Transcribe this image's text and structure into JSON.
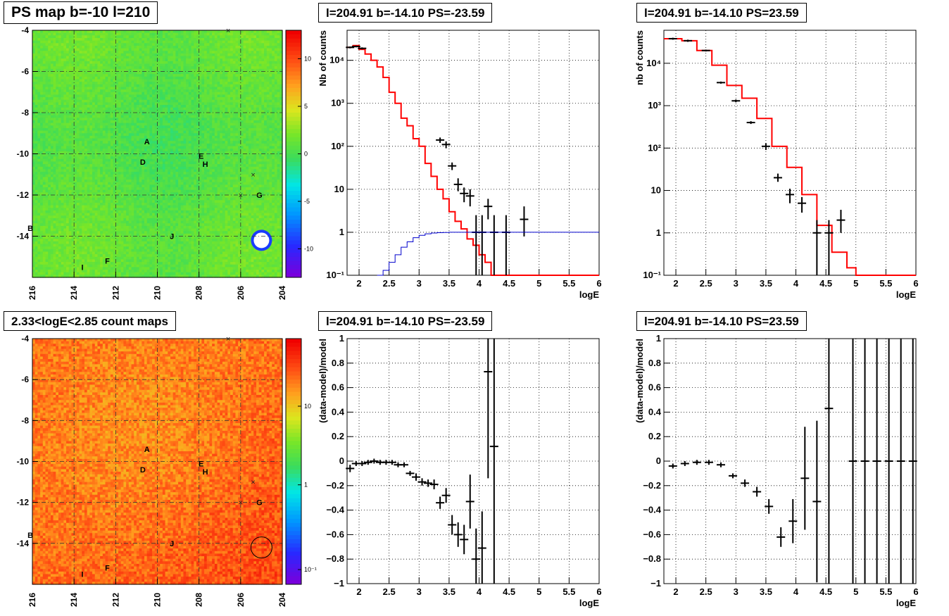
{
  "pad_titles": {
    "map_ps": "PS map b=-10 l=210",
    "map_counts": "2.33<logE<2.85 count maps",
    "spec_left": "l=204.91 b=-14.10 PS=-23.59",
    "spec_right": "l=204.91 b=-14.10 PS=23.59",
    "res_left": "l=204.91 b=-14.10 PS=-23.59",
    "res_right": "l=204.91 b=-14.10 PS=23.59"
  },
  "chart_data": [
    {
      "id": "ps_map",
      "type": "heatmap",
      "title": "PS map b=-10 l=210",
      "xlim": [
        216,
        204
      ],
      "ylim": [
        -16,
        -4
      ],
      "x_ticks": [
        "216",
        "214",
        "212",
        "210",
        "208",
        "206",
        "204"
      ],
      "y_ticks": [
        "-4",
        "-6",
        "-8",
        "-10",
        "-12",
        "-14"
      ],
      "colorbar": {
        "ticks": [
          "10",
          "5",
          "0",
          "-5",
          "-10"
        ],
        "range": [
          -13,
          13
        ]
      },
      "sources": [
        {
          "label": "A",
          "l": 210.5,
          "b": -9.4
        },
        {
          "label": "B",
          "l": 216.1,
          "b": -13.6
        },
        {
          "label": "D",
          "l": 210.7,
          "b": -10.4
        },
        {
          "label": "E",
          "l": 207.9,
          "b": -10.1
        },
        {
          "label": "F",
          "l": 212.4,
          "b": -15.2
        },
        {
          "label": "G",
          "l": 205.1,
          "b": -12.0
        },
        {
          "label": "H",
          "l": 207.7,
          "b": -10.5
        },
        {
          "label": "I",
          "l": 213.6,
          "b": -15.5
        },
        {
          "label": "J",
          "l": 209.3,
          "b": -14.0
        }
      ],
      "grid": true
    },
    {
      "id": "count_map",
      "type": "heatmap",
      "title": "2.33<logE<2.85 count maps",
      "xlim": [
        216,
        204
      ],
      "ylim": [
        -16,
        -4
      ],
      "x_ticks": [
        "216",
        "214",
        "212",
        "210",
        "208",
        "206",
        "204"
      ],
      "y_ticks": [
        "-4",
        "-6",
        "-8",
        "-10",
        "-12",
        "-14"
      ],
      "colorbar": {
        "ticks": [
          "10",
          "1",
          "10⁻¹"
        ],
        "scale": "log",
        "range": [
          0.05,
          60
        ]
      },
      "sources": [
        {
          "label": "A",
          "l": 210.5,
          "b": -9.4
        },
        {
          "label": "B",
          "l": 216.1,
          "b": -13.6
        },
        {
          "label": "D",
          "l": 210.7,
          "b": -10.4
        },
        {
          "label": "E",
          "l": 207.9,
          "b": -10.1
        },
        {
          "label": "F",
          "l": 212.4,
          "b": -15.2
        },
        {
          "label": "G",
          "l": 205.1,
          "b": -12.0
        },
        {
          "label": "H",
          "l": 207.7,
          "b": -10.5
        },
        {
          "label": "I",
          "l": 213.6,
          "b": -15.5
        },
        {
          "label": "J",
          "l": 209.3,
          "b": -14.0
        }
      ],
      "grid": true
    },
    {
      "id": "spectrum_neg",
      "type": "line",
      "title": "l=204.91 b=-14.10 PS=-23.59",
      "xlabel": "logE",
      "ylabel": "Nb of counts",
      "xlim": [
        1.8,
        6
      ],
      "ylim": [
        0.1,
        50000
      ],
      "yscale": "log",
      "x_ticks": [
        "2",
        "2.5",
        "3",
        "3.5",
        "4",
        "4.5",
        "5",
        "5.5",
        "6"
      ],
      "y_ticks": [
        "10⁻¹",
        "1",
        "10",
        "10²",
        "10³",
        "10⁴"
      ],
      "grid": true,
      "series": [
        {
          "name": "model",
          "color": "#ff0000",
          "style": "step",
          "edges": [
            1.8,
            1.9,
            2.0,
            2.1,
            2.2,
            2.3,
            2.4,
            2.5,
            2.6,
            2.7,
            2.8,
            2.9,
            3.0,
            3.1,
            3.2,
            3.3,
            3.4,
            3.5,
            3.6,
            3.7,
            3.8,
            3.9,
            4.0,
            4.1,
            4.2,
            4.3,
            4.4,
            4.5,
            4.6,
            4.7,
            4.8,
            4.9,
            5.0,
            6.0
          ],
          "values": [
            20000,
            22000,
            18000,
            14000,
            10000,
            7000,
            4000,
            1800,
            1000,
            450,
            300,
            150,
            100,
            40,
            20,
            10,
            6,
            3,
            1.8,
            1.2,
            0.7,
            0.5,
            0.3,
            0.2,
            0.1,
            0.1,
            0.1,
            0.1,
            0.1,
            0.1,
            0.1,
            0.1,
            0.1
          ]
        },
        {
          "name": "data",
          "color": "#000000",
          "style": "errorbar",
          "points": [
            {
              "x": 1.85,
              "y": 20000,
              "lo": 19000,
              "hi": 21000
            },
            {
              "x": 1.95,
              "y": 21000,
              "lo": 20000,
              "hi": 22000
            },
            {
              "x": 2.05,
              "y": 19000,
              "lo": 18000,
              "hi": 20000
            },
            {
              "x": 3.35,
              "y": 140,
              "lo": 120,
              "hi": 160
            },
            {
              "x": 3.45,
              "y": 110,
              "lo": 90,
              "hi": 130
            },
            {
              "x": 3.55,
              "y": 35,
              "lo": 28,
              "hi": 42
            },
            {
              "x": 3.65,
              "y": 13,
              "lo": 9,
              "hi": 18
            },
            {
              "x": 3.75,
              "y": 8,
              "lo": 5,
              "hi": 11
            },
            {
              "x": 3.85,
              "y": 7,
              "lo": 4,
              "hi": 10
            },
            {
              "x": 3.95,
              "y": 1.0,
              "lo": 0.1,
              "hi": 2.5
            },
            {
              "x": 4.05,
              "y": 1.0,
              "lo": 0.1,
              "hi": 2.5
            },
            {
              "x": 4.15,
              "y": 4,
              "lo": 2,
              "hi": 6
            },
            {
              "x": 4.25,
              "y": 1.0,
              "lo": 0.1,
              "hi": 2.5
            },
            {
              "x": 4.45,
              "y": 1.0,
              "lo": 0.1,
              "hi": 2.5
            },
            {
              "x": 4.75,
              "y": 2,
              "lo": 0.8,
              "hi": 4
            }
          ]
        },
        {
          "name": "source",
          "color": "#0000cc",
          "style": "step",
          "edges": [
            2.3,
            2.4,
            2.5,
            2.6,
            2.7,
            2.8,
            2.9,
            3.0,
            3.1,
            3.2,
            3.3,
            3.4,
            3.5,
            3.6,
            6.0
          ],
          "values": [
            0.1,
            0.13,
            0.2,
            0.3,
            0.45,
            0.6,
            0.75,
            0.85,
            0.92,
            0.96,
            0.98,
            0.99,
            1.0,
            1.0
          ]
        }
      ]
    },
    {
      "id": "spectrum_pos",
      "type": "line",
      "title": "l=204.91 b=-14.10 PS=23.59",
      "xlabel": "logE",
      "ylabel": "nb of counts",
      "xlim": [
        1.8,
        6
      ],
      "ylim": [
        0.1,
        60000
      ],
      "yscale": "log",
      "x_ticks": [
        "2",
        "2.5",
        "3",
        "3.5",
        "4",
        "4.5",
        "5",
        "5.5",
        "6"
      ],
      "y_ticks": [
        "10⁻¹",
        "1",
        "10",
        "10²",
        "10³",
        "10⁴"
      ],
      "grid": true,
      "series": [
        {
          "name": "model",
          "color": "#ff0000",
          "style": "step",
          "edges": [
            1.8,
            2.1,
            2.35,
            2.6,
            2.85,
            3.1,
            3.35,
            3.6,
            3.85,
            4.1,
            4.35,
            4.6,
            4.85,
            5.0,
            6.0
          ],
          "values": [
            38000,
            34000,
            20000,
            9000,
            3000,
            1500,
            500,
            110,
            35,
            8,
            1.5,
            0.35,
            0.15,
            0.1
          ]
        },
        {
          "name": "data",
          "color": "#000000",
          "style": "errorbar",
          "points": [
            {
              "x": 1.95,
              "y": 38000,
              "lo": 36000,
              "hi": 40000
            },
            {
              "x": 2.2,
              "y": 34000,
              "lo": 32000,
              "hi": 36000
            },
            {
              "x": 2.5,
              "y": 20000,
              "lo": 19000,
              "hi": 21000
            },
            {
              "x": 2.75,
              "y": 3500,
              "lo": 3300,
              "hi": 3700
            },
            {
              "x": 3.0,
              "y": 1300,
              "lo": 1200,
              "hi": 1400
            },
            {
              "x": 3.25,
              "y": 400,
              "lo": 370,
              "hi": 430
            },
            {
              "x": 3.5,
              "y": 110,
              "lo": 90,
              "hi": 130
            },
            {
              "x": 3.7,
              "y": 20,
              "lo": 16,
              "hi": 25
            },
            {
              "x": 3.9,
              "y": 8,
              "lo": 5,
              "hi": 11
            },
            {
              "x": 4.1,
              "y": 5,
              "lo": 3,
              "hi": 7
            },
            {
              "x": 4.35,
              "y": 1.0,
              "lo": 0.1,
              "hi": 2.0
            },
            {
              "x": 4.55,
              "y": 1.0,
              "lo": 0.1,
              "hi": 2.0
            },
            {
              "x": 4.75,
              "y": 2,
              "lo": 1,
              "hi": 3.5
            }
          ]
        }
      ]
    },
    {
      "id": "residual_neg",
      "type": "scatter",
      "title": "l=204.91 b=-14.10 PS=-23.59",
      "xlabel": "logE",
      "ylabel": "(data-model)/model",
      "xlim": [
        1.8,
        6
      ],
      "ylim": [
        -1,
        1
      ],
      "x_ticks": [
        "2",
        "2.5",
        "3",
        "3.5",
        "4",
        "4.5",
        "5",
        "5.5",
        "6"
      ],
      "y_ticks": [
        "−1",
        "−0.8",
        "−0.6",
        "−0.4",
        "−0.2",
        "0",
        "0.2",
        "0.4",
        "0.6",
        "0.8",
        "1"
      ],
      "grid": true,
      "points": [
        {
          "x": 1.85,
          "y": -0.06,
          "e": 0.03
        },
        {
          "x": 1.95,
          "y": -0.02,
          "e": 0.02
        },
        {
          "x": 2.05,
          "y": -0.02,
          "e": 0.02
        },
        {
          "x": 2.15,
          "y": -0.01,
          "e": 0.02
        },
        {
          "x": 2.25,
          "y": 0.0,
          "e": 0.02
        },
        {
          "x": 2.35,
          "y": -0.01,
          "e": 0.02
        },
        {
          "x": 2.45,
          "y": -0.01,
          "e": 0.02
        },
        {
          "x": 2.55,
          "y": -0.01,
          "e": 0.02
        },
        {
          "x": 2.65,
          "y": -0.03,
          "e": 0.02
        },
        {
          "x": 2.75,
          "y": -0.03,
          "e": 0.02
        },
        {
          "x": 2.85,
          "y": -0.1,
          "e": 0.02
        },
        {
          "x": 2.95,
          "y": -0.13,
          "e": 0.03
        },
        {
          "x": 3.05,
          "y": -0.17,
          "e": 0.03
        },
        {
          "x": 3.15,
          "y": -0.18,
          "e": 0.03
        },
        {
          "x": 3.25,
          "y": -0.19,
          "e": 0.04
        },
        {
          "x": 3.35,
          "y": -0.34,
          "e": 0.05
        },
        {
          "x": 3.45,
          "y": -0.28,
          "e": 0.06
        },
        {
          "x": 3.55,
          "y": -0.52,
          "e": 0.08
        },
        {
          "x": 3.65,
          "y": -0.6,
          "e": 0.1
        },
        {
          "x": 3.75,
          "y": -0.64,
          "e": 0.12
        },
        {
          "x": 3.85,
          "y": -0.33,
          "e": 0.22
        },
        {
          "x": 3.95,
          "y": -0.8,
          "e": 0.25
        },
        {
          "x": 4.05,
          "y": -0.71,
          "e": 0.3
        },
        {
          "x": 4.15,
          "y": 0.73,
          "e": 0.87
        },
        {
          "x": 4.25,
          "y": 0.12,
          "e": 1.2
        }
      ]
    },
    {
      "id": "residual_pos",
      "type": "scatter",
      "title": "l=204.91 b=-14.10 PS=23.59",
      "xlabel": "logE",
      "ylabel": "(data-model)/model",
      "xlim": [
        1.8,
        6
      ],
      "ylim": [
        -1,
        1
      ],
      "x_ticks": [
        "2",
        "2.5",
        "3",
        "3.5",
        "4",
        "4.5",
        "5",
        "5.5",
        "6"
      ],
      "y_ticks": [
        "−1",
        "−0.8",
        "−0.6",
        "−0.4",
        "−0.2",
        "0",
        "0.2",
        "0.4",
        "0.6",
        "0.8",
        "1"
      ],
      "grid": true,
      "points": [
        {
          "x": 1.95,
          "y": -0.04,
          "e": 0.02
        },
        {
          "x": 2.15,
          "y": -0.02,
          "e": 0.02
        },
        {
          "x": 2.35,
          "y": -0.01,
          "e": 0.02
        },
        {
          "x": 2.55,
          "y": -0.01,
          "e": 0.02
        },
        {
          "x": 2.75,
          "y": -0.03,
          "e": 0.02
        },
        {
          "x": 2.95,
          "y": -0.12,
          "e": 0.02
        },
        {
          "x": 3.15,
          "y": -0.18,
          "e": 0.03
        },
        {
          "x": 3.35,
          "y": -0.25,
          "e": 0.04
        },
        {
          "x": 3.55,
          "y": -0.37,
          "e": 0.06
        },
        {
          "x": 3.75,
          "y": -0.62,
          "e": 0.08
        },
        {
          "x": 3.95,
          "y": -0.49,
          "e": 0.18
        },
        {
          "x": 4.15,
          "y": -0.14,
          "e": 0.42
        },
        {
          "x": 4.35,
          "y": -0.33,
          "e": 0.66
        },
        {
          "x": 4.55,
          "y": 0.43,
          "e": 1.5
        },
        {
          "x": 4.95,
          "y": 0,
          "e": 3
        },
        {
          "x": 5.15,
          "y": 0,
          "e": 3
        },
        {
          "x": 5.35,
          "y": 0,
          "e": 3
        },
        {
          "x": 5.55,
          "y": 0,
          "e": 3
        },
        {
          "x": 5.75,
          "y": 0,
          "e": 3
        },
        {
          "x": 5.95,
          "y": 0,
          "e": 3
        }
      ]
    }
  ]
}
